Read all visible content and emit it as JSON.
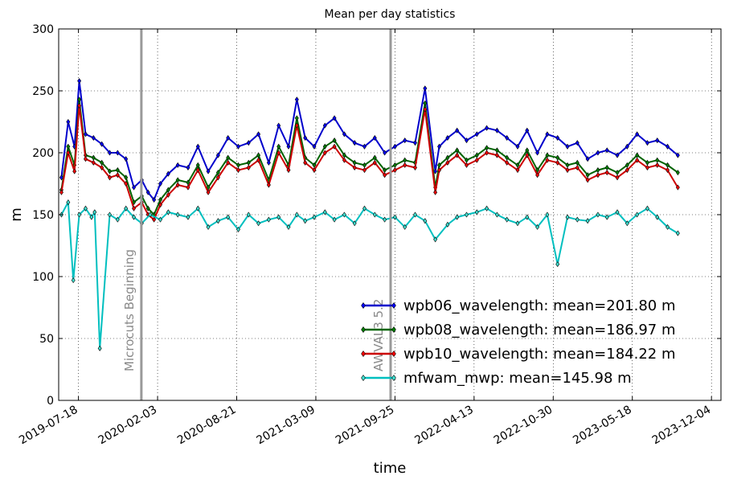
{
  "chart_data": {
    "type": "line",
    "title": "Mean per day statistics",
    "xlabel": "time",
    "ylabel": "m",
    "ylim": [
      0,
      300
    ],
    "xlim": [
      "2019-05-29",
      "2023-12-28"
    ],
    "yticks": [
      0,
      50,
      100,
      150,
      200,
      250,
      300
    ],
    "xticks": [
      "2019-07-18",
      "2020-02-03",
      "2020-08-21",
      "2021-03-09",
      "2021-09-25",
      "2022-04-13",
      "2022-10-30",
      "2023-05-18",
      "2023-12-04"
    ],
    "grid": true,
    "legend_position": "lower right",
    "series": [
      {
        "name": "wpb06_wavelength: mean=201.80 m",
        "color": "#0000cc",
        "marker_fill": "#0000ff",
        "x": [
          "2019-06-05",
          "2019-06-22",
          "2019-07-08",
          "2019-07-20",
          "2019-08-05",
          "2019-08-25",
          "2019-09-15",
          "2019-10-05",
          "2019-10-25",
          "2019-11-15",
          "2019-12-05",
          "2019-12-25",
          "2020-01-10",
          "2020-01-25",
          "2020-02-10",
          "2020-03-01",
          "2020-03-25",
          "2020-04-20",
          "2020-05-15",
          "2020-06-10",
          "2020-07-05",
          "2020-07-30",
          "2020-08-25",
          "2020-09-20",
          "2020-10-15",
          "2020-11-10",
          "2020-12-05",
          "2020-12-30",
          "2021-01-20",
          "2021-02-10",
          "2021-03-05",
          "2021-04-01",
          "2021-04-25",
          "2021-05-20",
          "2021-06-15",
          "2021-07-10",
          "2021-08-05",
          "2021-08-30",
          "2021-09-25",
          "2021-10-20",
          "2021-11-15",
          "2021-12-10",
          "2022-01-05",
          "2022-01-15",
          "2022-02-05",
          "2022-03-01",
          "2022-03-25",
          "2022-04-20",
          "2022-05-15",
          "2022-06-10",
          "2022-07-05",
          "2022-08-01",
          "2022-08-25",
          "2022-09-20",
          "2022-10-15",
          "2022-11-10",
          "2022-12-05",
          "2022-12-30",
          "2023-01-25",
          "2023-02-20",
          "2023-03-15",
          "2023-04-10",
          "2023-05-05",
          "2023-05-30",
          "2023-06-25",
          "2023-07-20",
          "2023-08-15",
          "2023-09-10"
        ],
        "values": [
          180,
          225,
          205,
          258,
          215,
          212,
          207,
          200,
          200,
          195,
          172,
          178,
          168,
          162,
          175,
          183,
          190,
          188,
          205,
          185,
          198,
          212,
          205,
          208,
          215,
          192,
          222,
          205,
          243,
          212,
          205,
          222,
          228,
          215,
          208,
          205,
          212,
          200,
          205,
          210,
          208,
          252,
          185,
          205,
          212,
          218,
          210,
          215,
          220,
          218,
          212,
          205,
          218,
          200,
          215,
          212,
          205,
          208,
          195,
          200,
          202,
          198,
          205,
          215,
          208,
          210,
          205,
          198
        ]
      },
      {
        "name": "wpb08_wavelength: mean=186.97 m",
        "color": "#006400",
        "marker_fill": "#008000",
        "x": [
          "2019-06-05",
          "2019-06-22",
          "2019-07-08",
          "2019-07-20",
          "2019-08-05",
          "2019-08-25",
          "2019-09-15",
          "2019-10-05",
          "2019-10-25",
          "2019-11-15",
          "2019-12-05",
          "2019-12-25",
          "2020-01-10",
          "2020-01-25",
          "2020-02-10",
          "2020-03-01",
          "2020-03-25",
          "2020-04-20",
          "2020-05-15",
          "2020-06-10",
          "2020-07-05",
          "2020-07-30",
          "2020-08-25",
          "2020-09-20",
          "2020-10-15",
          "2020-11-10",
          "2020-12-05",
          "2020-12-30",
          "2021-01-20",
          "2021-02-10",
          "2021-03-05",
          "2021-04-01",
          "2021-04-25",
          "2021-05-20",
          "2021-06-15",
          "2021-07-10",
          "2021-08-05",
          "2021-08-30",
          "2021-09-25",
          "2021-10-20",
          "2021-11-15",
          "2021-12-10",
          "2022-01-05",
          "2022-01-15",
          "2022-02-05",
          "2022-03-01",
          "2022-03-25",
          "2022-04-20",
          "2022-05-15",
          "2022-06-10",
          "2022-07-05",
          "2022-08-01",
          "2022-08-25",
          "2022-09-20",
          "2022-10-15",
          "2022-11-10",
          "2022-12-05",
          "2022-12-30",
          "2023-01-25",
          "2023-02-20",
          "2023-03-15",
          "2023-04-10",
          "2023-05-05",
          "2023-05-30",
          "2023-06-25",
          "2023-07-20",
          "2023-08-15",
          "2023-09-10"
        ],
        "values": [
          170,
          205,
          190,
          243,
          198,
          196,
          192,
          185,
          186,
          180,
          160,
          165,
          155,
          150,
          162,
          170,
          178,
          176,
          190,
          172,
          184,
          196,
          190,
          192,
          198,
          178,
          205,
          190,
          228,
          196,
          190,
          205,
          210,
          198,
          192,
          190,
          196,
          186,
          190,
          194,
          192,
          240,
          172,
          190,
          196,
          202,
          194,
          198,
          204,
          202,
          196,
          190,
          202,
          186,
          198,
          196,
          190,
          192,
          182,
          186,
          188,
          184,
          190,
          198,
          192,
          194,
          190,
          184
        ]
      },
      {
        "name": "wpb10_wavelength: mean=184.22 m",
        "color": "#cc0000",
        "marker_fill": "#ff0000",
        "x": [
          "2019-06-05",
          "2019-06-22",
          "2019-07-08",
          "2019-07-20",
          "2019-08-05",
          "2019-08-25",
          "2019-09-15",
          "2019-10-05",
          "2019-10-25",
          "2019-11-15",
          "2019-12-05",
          "2019-12-25",
          "2020-01-10",
          "2020-01-25",
          "2020-02-10",
          "2020-03-01",
          "2020-03-25",
          "2020-04-20",
          "2020-05-15",
          "2020-06-10",
          "2020-07-05",
          "2020-07-30",
          "2020-08-25",
          "2020-09-20",
          "2020-10-15",
          "2020-11-10",
          "2020-12-05",
          "2020-12-30",
          "2021-01-20",
          "2021-02-10",
          "2021-03-05",
          "2021-04-01",
          "2021-04-25",
          "2021-05-20",
          "2021-06-15",
          "2021-07-10",
          "2021-08-05",
          "2021-08-30",
          "2021-09-25",
          "2021-10-20",
          "2021-11-15",
          "2021-12-10",
          "2022-01-05",
          "2022-01-15",
          "2022-02-05",
          "2022-03-01",
          "2022-03-25",
          "2022-04-20",
          "2022-05-15",
          "2022-06-10",
          "2022-07-05",
          "2022-08-01",
          "2022-08-25",
          "2022-09-20",
          "2022-10-15",
          "2022-11-10",
          "2022-12-05",
          "2022-12-30",
          "2023-01-25",
          "2023-02-20",
          "2023-03-15",
          "2023-04-10",
          "2023-05-05",
          "2023-05-30",
          "2023-06-25",
          "2023-07-20",
          "2023-08-15",
          "2023-09-10"
        ],
        "values": [
          168,
          200,
          185,
          238,
          195,
          192,
          188,
          180,
          182,
          175,
          155,
          160,
          150,
          146,
          158,
          166,
          174,
          172,
          186,
          168,
          180,
          192,
          186,
          188,
          194,
          174,
          200,
          186,
          222,
          192,
          186,
          200,
          205,
          194,
          188,
          186,
          192,
          182,
          186,
          190,
          188,
          235,
          168,
          186,
          192,
          198,
          190,
          194,
          200,
          198,
          192,
          186,
          198,
          182,
          194,
          192,
          186,
          188,
          178,
          182,
          184,
          180,
          186,
          194,
          188,
          190,
          186,
          172
        ]
      },
      {
        "name": "mfwam_mwp: mean=145.98 m",
        "color": "#00bfbf",
        "marker_fill": "#40e0d0",
        "x": [
          "2019-06-05",
          "2019-06-22",
          "2019-07-05",
          "2019-07-20",
          "2019-08-05",
          "2019-08-20",
          "2019-08-28",
          "2019-09-10",
          "2019-10-05",
          "2019-10-25",
          "2019-11-15",
          "2019-12-05",
          "2019-12-25",
          "2020-01-15",
          "2020-02-10",
          "2020-03-01",
          "2020-03-25",
          "2020-04-20",
          "2020-05-15",
          "2020-06-10",
          "2020-07-05",
          "2020-07-30",
          "2020-08-25",
          "2020-09-20",
          "2020-10-15",
          "2020-11-10",
          "2020-12-05",
          "2020-12-30",
          "2021-01-20",
          "2021-02-10",
          "2021-03-05",
          "2021-04-01",
          "2021-04-25",
          "2021-05-20",
          "2021-06-15",
          "2021-07-10",
          "2021-08-05",
          "2021-08-30",
          "2021-09-25",
          "2021-10-20",
          "2021-11-15",
          "2021-12-10",
          "2022-01-05",
          "2022-02-05",
          "2022-03-01",
          "2022-03-25",
          "2022-04-20",
          "2022-05-15",
          "2022-06-10",
          "2022-07-05",
          "2022-08-01",
          "2022-08-25",
          "2022-09-20",
          "2022-10-15",
          "2022-11-10",
          "2022-12-05",
          "2022-12-30",
          "2023-01-25",
          "2023-02-20",
          "2023-03-15",
          "2023-04-10",
          "2023-05-05",
          "2023-05-30",
          "2023-06-25",
          "2023-07-20",
          "2023-08-15",
          "2023-09-10"
        ],
        "values": [
          150,
          160,
          97,
          150,
          155,
          148,
          152,
          42,
          150,
          146,
          155,
          148,
          143,
          150,
          146,
          152,
          150,
          148,
          155,
          140,
          145,
          148,
          138,
          150,
          143,
          146,
          148,
          140,
          150,
          145,
          148,
          152,
          146,
          150,
          143,
          155,
          150,
          146,
          148,
          140,
          150,
          145,
          130,
          142,
          148,
          150,
          152,
          155,
          150,
          146,
          143,
          148,
          140,
          150,
          110,
          148,
          146,
          145,
          150,
          148,
          152,
          143,
          150,
          155,
          148,
          140,
          135
        ]
      }
    ],
    "annotations": [
      {
        "label": "Microcuts Beginning",
        "x": "2019-12-24"
      },
      {
        "label": "AWVAL3 5.2",
        "x": "2021-09-14"
      }
    ]
  }
}
